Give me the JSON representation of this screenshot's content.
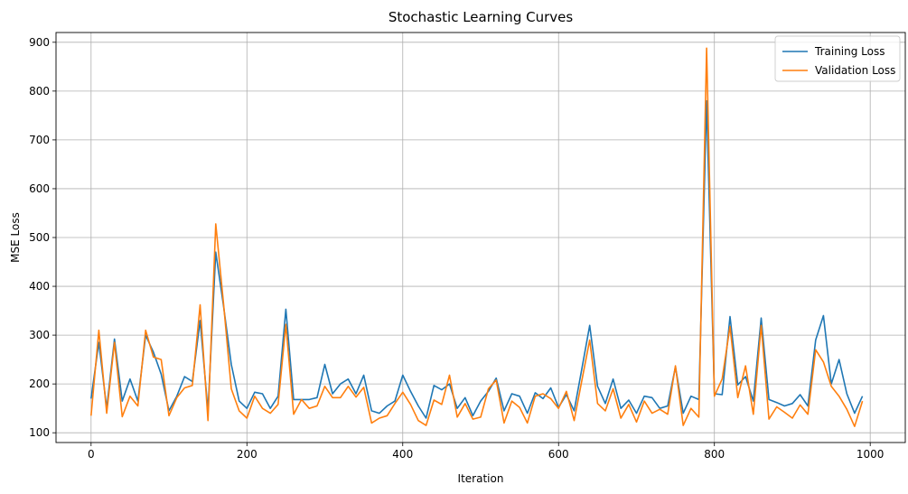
{
  "chart_data": {
    "type": "line",
    "title": "Stochastic Learning Curves",
    "xlabel": "Iteration",
    "ylabel": "MSE Loss",
    "xlim": [
      -45,
      1045
    ],
    "ylim": [
      80,
      920
    ],
    "xticks": [
      0,
      200,
      400,
      600,
      800,
      1000
    ],
    "yticks": [
      100,
      200,
      300,
      400,
      500,
      600,
      700,
      800,
      900
    ],
    "grid": true,
    "legend_position": "top-right",
    "x": [
      0,
      10,
      20,
      30,
      40,
      50,
      60,
      70,
      80,
      90,
      100,
      110,
      120,
      130,
      140,
      150,
      160,
      170,
      180,
      190,
      200,
      210,
      220,
      230,
      240,
      250,
      260,
      270,
      280,
      290,
      300,
      310,
      320,
      330,
      340,
      350,
      360,
      370,
      380,
      390,
      400,
      410,
      420,
      430,
      440,
      450,
      460,
      470,
      480,
      490,
      500,
      510,
      520,
      530,
      540,
      550,
      560,
      570,
      580,
      590,
      600,
      610,
      620,
      630,
      640,
      650,
      660,
      670,
      680,
      690,
      700,
      710,
      720,
      730,
      740,
      750,
      760,
      770,
      780,
      790,
      800,
      810,
      820,
      830,
      840,
      850,
      860,
      870,
      880,
      890,
      900,
      910,
      920,
      930,
      940,
      950,
      960,
      970,
      980,
      990
    ],
    "series": [
      {
        "name": "Training Loss",
        "color": "#1f77b4",
        "values": [
          170,
          285,
          150,
          292,
          165,
          210,
          165,
          300,
          265,
          220,
          145,
          175,
          215,
          205,
          330,
          145,
          470,
          360,
          240,
          165,
          150,
          183,
          180,
          150,
          175,
          353,
          168,
          168,
          168,
          172,
          240,
          180,
          200,
          210,
          180,
          218,
          145,
          140,
          155,
          165,
          218,
          185,
          155,
          130,
          197,
          188,
          200,
          150,
          172,
          135,
          165,
          185,
          212,
          145,
          180,
          175,
          140,
          182,
          170,
          192,
          152,
          178,
          145,
          232,
          320,
          195,
          160,
          210,
          150,
          167,
          140,
          175,
          172,
          150,
          155,
          235,
          140,
          175,
          168,
          780,
          180,
          178,
          338,
          198,
          215,
          165,
          335,
          168,
          162,
          155,
          160,
          178,
          155,
          290,
          340,
          200,
          250,
          180,
          140,
          175
        ]
      },
      {
        "name": "Validation Loss",
        "color": "#ff7f0e",
        "values": [
          135,
          310,
          140,
          285,
          133,
          175,
          155,
          310,
          255,
          250,
          135,
          172,
          192,
          197,
          362,
          125,
          528,
          365,
          190,
          145,
          130,
          175,
          150,
          140,
          158,
          322,
          138,
          168,
          150,
          155,
          195,
          172,
          172,
          195,
          173,
          193,
          120,
          130,
          135,
          160,
          183,
          158,
          125,
          115,
          167,
          158,
          218,
          132,
          160,
          128,
          132,
          190,
          208,
          120,
          165,
          152,
          120,
          175,
          180,
          170,
          150,
          185,
          125,
          208,
          290,
          160,
          145,
          190,
          130,
          158,
          122,
          165,
          140,
          148,
          138,
          237,
          115,
          150,
          132,
          888,
          175,
          210,
          318,
          172,
          237,
          138,
          320,
          128,
          153,
          142,
          130,
          157,
          138,
          270,
          245,
          195,
          175,
          148,
          113,
          165
        ]
      }
    ]
  }
}
